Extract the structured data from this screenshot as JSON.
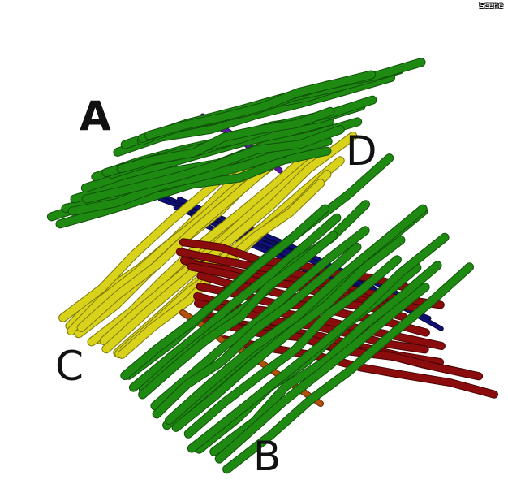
{
  "overlay": {
    "scene_label": "Scene"
  },
  "labels": {
    "a": "A",
    "b": "B",
    "c": "C",
    "d": "D"
  },
  "colors": {
    "green": "#1f8a12",
    "green_dark": "#0f5208",
    "yellow": "#d8d21a",
    "yellow_dark": "#7d780a",
    "red": "#8a0c0c",
    "red_dark": "#4a0404",
    "blue": "#101078",
    "purple": "#5a1aa0",
    "orange": "#b4500e"
  }
}
